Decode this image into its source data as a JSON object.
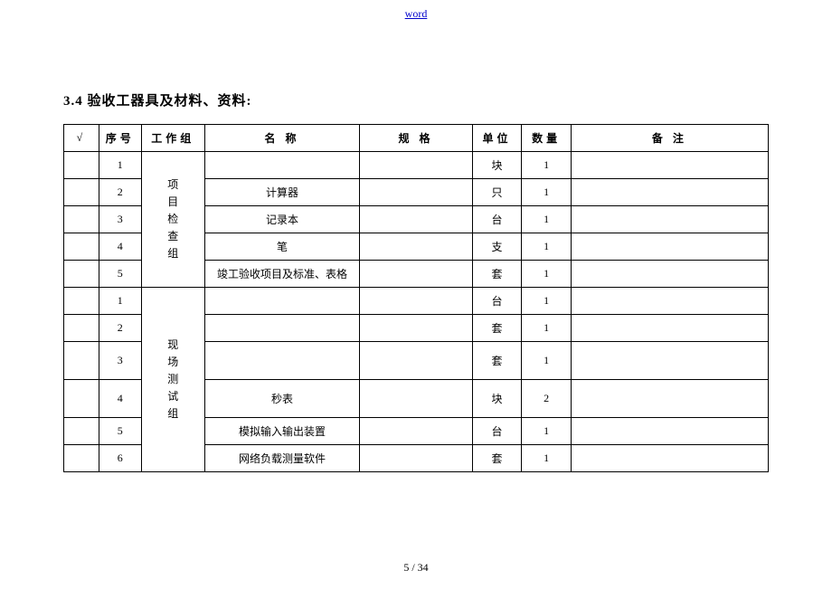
{
  "header": {
    "link_text": "word"
  },
  "section": {
    "title": "3.4 验收工器具及材料、资料:"
  },
  "table": {
    "columns": {
      "check": "√",
      "seq": "序号",
      "group": "工作组",
      "name": "名  称",
      "spec": "规  格",
      "unit": "单位",
      "qty": "数量",
      "note": "备  注"
    },
    "group1": {
      "label": "项\n目\n检\n查\n组",
      "rows": [
        {
          "seq": "1",
          "name": "",
          "spec": "",
          "unit": "块",
          "qty": "1",
          "note": ""
        },
        {
          "seq": "2",
          "name": "计算器",
          "spec": "",
          "unit": "只",
          "qty": "1",
          "note": ""
        },
        {
          "seq": "3",
          "name": "记录本",
          "spec": "",
          "unit": "台",
          "qty": "1",
          "note": ""
        },
        {
          "seq": "4",
          "name": "笔",
          "spec": "",
          "unit": "支",
          "qty": "1",
          "note": ""
        },
        {
          "seq": "5",
          "name": "竣工验收项目及标准、表格",
          "spec": "",
          "unit": "套",
          "qty": "1",
          "note": ""
        }
      ]
    },
    "group2": {
      "label": "现\n场\n测\n试\n组",
      "rows": [
        {
          "seq": "1",
          "name": "",
          "spec": "",
          "unit": "台",
          "qty": "1",
          "note": ""
        },
        {
          "seq": "2",
          "name": "",
          "spec": "",
          "unit": "套",
          "qty": "1",
          "note": ""
        },
        {
          "seq": "3",
          "name": "",
          "spec": "",
          "unit": "套",
          "qty": "1",
          "note": ""
        },
        {
          "seq": "4",
          "name": "秒表",
          "spec": "",
          "unit": "块",
          "qty": "2",
          "note": ""
        },
        {
          "seq": "5",
          "name": "模拟输入输出装置",
          "spec": "",
          "unit": "台",
          "qty": "1",
          "note": ""
        },
        {
          "seq": "6",
          "name": "网络负载测量软件",
          "spec": "",
          "unit": "套",
          "qty": "1",
          "note": ""
        }
      ]
    }
  },
  "footer": {
    "page": "5 / 34"
  }
}
